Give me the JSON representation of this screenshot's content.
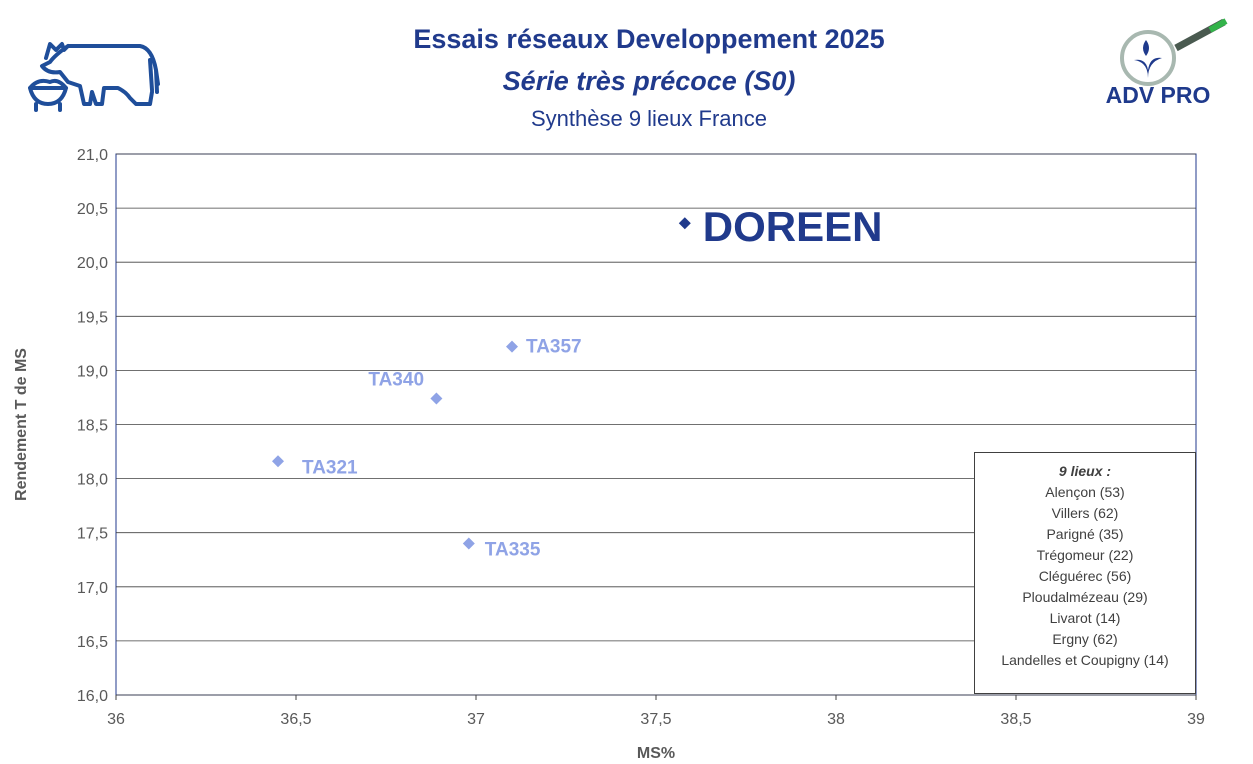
{
  "chart_data": {
    "type": "scatter",
    "title": "Essais réseaux Developpement 2025",
    "subtitle": "Série très précoce (S0)",
    "subtitle2": "Synthèse 9 lieux France",
    "xlabel": "MS%",
    "ylabel": "Rendement T de MS",
    "xlim": [
      36,
      39
    ],
    "ylim": [
      16,
      21
    ],
    "x_ticks": [
      "36",
      "36,5",
      "37",
      "37,5",
      "38",
      "38,5",
      "39"
    ],
    "y_ticks": [
      "16,0",
      "16,5",
      "17,0",
      "17,5",
      "18,0",
      "18,5",
      "19,0",
      "19,5",
      "20,0",
      "20,5",
      "21,0"
    ],
    "grid": "horizontal",
    "points": [
      {
        "label": "DOREEN",
        "x": 37.58,
        "y": 20.36,
        "color": "#203a8c",
        "highlight": true
      },
      {
        "label": "TA357",
        "x": 37.1,
        "y": 19.22,
        "color": "#8fa3e6"
      },
      {
        "label": "TA340",
        "x": 36.89,
        "y": 18.74,
        "color": "#8fa3e6"
      },
      {
        "label": "TA321",
        "x": 36.45,
        "y": 18.16,
        "color": "#8fa3e6"
      },
      {
        "label": "TA335",
        "x": 36.98,
        "y": 17.4,
        "color": "#8fa3e6"
      }
    ],
    "legend": {
      "placement": "bottom-right",
      "heading": "9 lieux :",
      "items": [
        "Alençon (53)",
        "Villers (62)",
        "Parigné (35)",
        "Trégomeur (22)",
        "Cléguérec (56)",
        "Ploudalmézeau (29)",
        "Livarot (14)",
        "Ergny (62)",
        "Landelles et Coupigny (14)"
      ]
    }
  },
  "logos": {
    "right": "ADV PRO",
    "left": "cow-and-bowl-logo"
  },
  "colors": {
    "title": "#203a8c",
    "point": "#8fa3e6",
    "highlight": "#203a8c"
  }
}
